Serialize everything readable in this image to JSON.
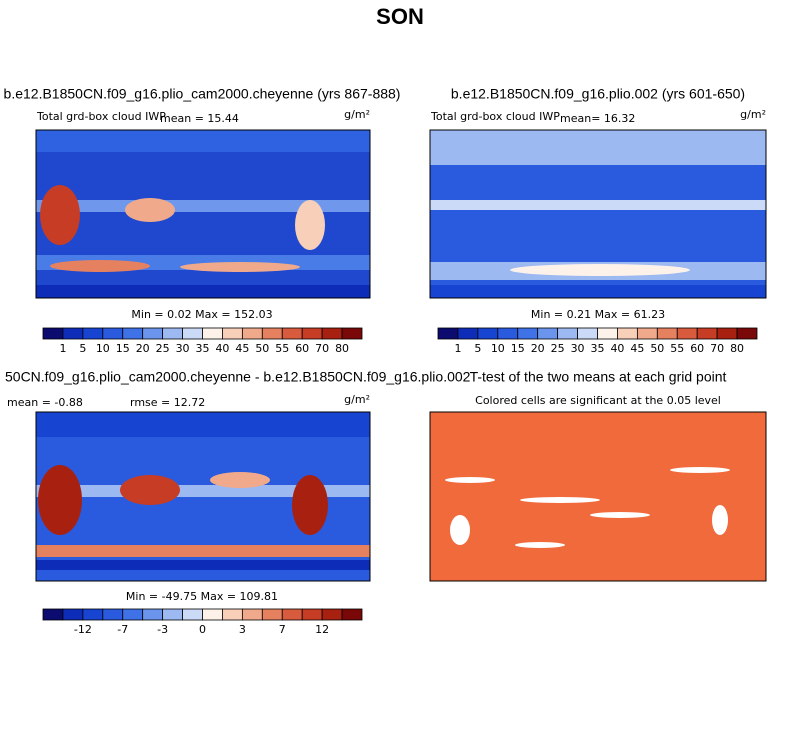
{
  "title": "SON",
  "panels": [
    {
      "title": "b.e12.B1850CN.f09_g16.plio_cam2000.cheyenne (yrs 867-888)",
      "variable": "Total grd-box cloud IWP",
      "mean": "mean =  15.44",
      "units": "g/m²",
      "stats": "Min =   0.02 Max = 152.03",
      "colorbar": {
        "labels": [
          "1",
          "5",
          "10",
          "15",
          "20",
          "25",
          "30",
          "35",
          "40",
          "45",
          "50",
          "55",
          "60",
          "70",
          "80"
        ],
        "colors": [
          "#0b0b70",
          "#0d2db8",
          "#1745d2",
          "#2a5bdf",
          "#3f72e6",
          "#6b95ec",
          "#9cb9f2",
          "#cadaf7",
          "#fdf2ea",
          "#f8cfb8",
          "#f0aa8b",
          "#e68160",
          "#d95b3d",
          "#c63c25",
          "#a82110",
          "#7a0808"
        ]
      }
    },
    {
      "title": "b.e12.B1850CN.f09_g16.plio.002 (yrs 601-650)",
      "variable": "Total grd-box cloud IWP",
      "mean": "mean=  16.32",
      "units": "g/m²",
      "stats": "Min =   0.21 Max =  61.23",
      "colorbar": {
        "labels": [
          "1",
          "5",
          "10",
          "15",
          "20",
          "25",
          "30",
          "35",
          "40",
          "45",
          "50",
          "55",
          "60",
          "70",
          "80"
        ],
        "colors": [
          "#0b0b70",
          "#0d2db8",
          "#1745d2",
          "#2a5bdf",
          "#3f72e6",
          "#6b95ec",
          "#9cb9f2",
          "#cadaf7",
          "#fdf2ea",
          "#f8cfb8",
          "#f0aa8b",
          "#e68160",
          "#d95b3d",
          "#c63c25",
          "#a82110",
          "#7a0808"
        ]
      }
    },
    {
      "title": "50CN.f09_g16.plio_cam2000.cheyenne - b.e12.B1850CN.f09_g16.plio.002",
      "mean": "mean =  -0.88",
      "rmse": "rmse =  12.72",
      "units": "g/m²",
      "stats": "Min = -49.75 Max = 109.81",
      "colorbar": {
        "labels": [
          "-12",
          "-7",
          "-3",
          "0",
          "3",
          "7",
          "12"
        ],
        "colors": [
          "#0b0b70",
          "#0d2db8",
          "#1745d2",
          "#2a5bdf",
          "#3f72e6",
          "#6b95ec",
          "#9cb9f2",
          "#cadaf7",
          "#fdf2ea",
          "#f8cfb8",
          "#f0aa8b",
          "#e68160",
          "#d95b3d",
          "#c63c25",
          "#a82110",
          "#7a0808"
        ]
      }
    },
    {
      "title": "T-test of the two means at each grid point",
      "subtitle": "Colored cells are significant at the 0.05 level"
    }
  ]
}
